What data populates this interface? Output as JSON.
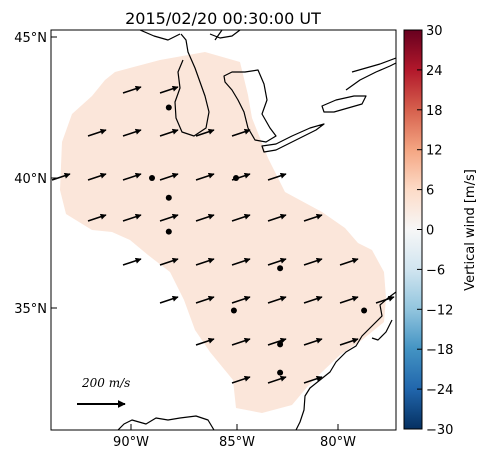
{
  "title": "2015/02/20 00:30:00 UT",
  "map": {
    "lon_ticks": [
      "90°W",
      "85°W",
      "80°W"
    ],
    "lat_ticks": [
      "45°N",
      "40°N",
      "35°N"
    ],
    "lon_range": [
      -94.5,
      -77.5
    ],
    "lat_range": [
      30.5,
      45.5
    ],
    "domain_fill_color": "#fbe6da",
    "coast_color": "#000000",
    "arrow_color": "#000000"
  },
  "colorbar": {
    "label": "Vertical wind [m/s]",
    "ticks": [
      "30",
      "24",
      "18",
      "12",
      "6",
      "0",
      "−6",
      "−12",
      "−18",
      "−24",
      "−30"
    ],
    "range": [
      -30,
      30
    ],
    "colormap": "RdBu_r",
    "colors": [
      "#67001f",
      "#b2182b",
      "#d6604d",
      "#f4a582",
      "#fddbc7",
      "#f7f7f7",
      "#d1e5f0",
      "#92c5de",
      "#4393c3",
      "#2166ac",
      "#053061"
    ]
  },
  "scale": {
    "label": "200 m/s",
    "value": 200
  },
  "stations": [
    {
      "lon": -88.2,
      "lat": 42.5
    },
    {
      "lon": -89.0,
      "lat": 40.0
    },
    {
      "lon": -85.0,
      "lat": 40.0
    },
    {
      "lon": -88.2,
      "lat": 39.3
    },
    {
      "lon": -88.2,
      "lat": 38.1
    },
    {
      "lon": -82.9,
      "lat": 36.8
    },
    {
      "lon": -85.1,
      "lat": 35.3
    },
    {
      "lon": -78.9,
      "lat": 35.3
    },
    {
      "lon": -82.9,
      "lat": 34.1
    },
    {
      "lon": -82.9,
      "lat": 33.1
    }
  ]
}
